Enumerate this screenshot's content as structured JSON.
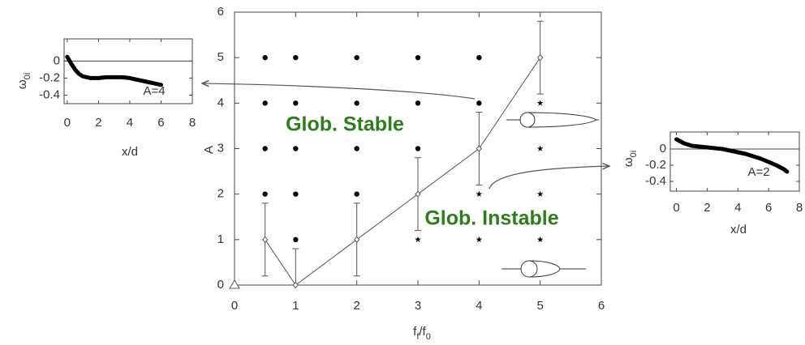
{
  "chart_data": [
    {
      "type": "scatter",
      "xlim": [
        0,
        6
      ],
      "ylim": [
        0,
        6
      ],
      "xticks": [
        0,
        1,
        2,
        3,
        4,
        5,
        6
      ],
      "yticks": [
        0,
        1,
        2,
        3,
        4,
        5,
        6
      ],
      "xlabel_parts": [
        {
          "text": "f"
        },
        {
          "text": "f",
          "sub": true
        },
        {
          "text": "/f"
        },
        {
          "text": "0",
          "sub": true
        }
      ],
      "ylabel": "A",
      "annotations": [
        "Glob. Stable",
        "Glob. Instable"
      ],
      "series": [
        {
          "marker": "dot",
          "color": "#000000",
          "x": [
            0.5,
            1,
            2,
            3,
            4,
            0.5,
            1,
            2,
            3,
            4,
            0.5,
            1,
            2,
            3,
            0.5,
            1,
            2,
            1
          ],
          "values": [
            5,
            5,
            5,
            5,
            5,
            4,
            4,
            4,
            4,
            4,
            3,
            3,
            3,
            3,
            2,
            2,
            2,
            1
          ]
        },
        {
          "marker": "star",
          "color": "#000000",
          "x": [
            5,
            5,
            4,
            5,
            3,
            4,
            5
          ],
          "values": [
            4,
            3,
            2,
            2,
            1,
            1,
            1
          ]
        },
        {
          "marker": "diamond",
          "line": true,
          "color": "#555555",
          "x": [
            0.5,
            1,
            2,
            3,
            4,
            5
          ],
          "values": [
            1,
            0,
            1,
            2,
            3,
            5
          ],
          "errors": [
            0.8,
            0.8,
            0.8,
            0.8,
            0.8,
            0.8
          ]
        },
        {
          "marker": "triangle",
          "color": "#555555",
          "x": [
            0
          ],
          "values": [
            0
          ]
        }
      ]
    },
    {
      "type": "line",
      "xlim": [
        -0.2,
        8
      ],
      "ylim": [
        -0.5,
        0.26
      ],
      "xticks": [
        0,
        2,
        4,
        6,
        8
      ],
      "yticks": [
        0,
        -0.2,
        -0.4
      ],
      "xlabel": "x/d",
      "ylabel_parts": [
        {
          "text": "ω"
        },
        {
          "text": "0i",
          "sub": true
        }
      ],
      "annotation": "A=4",
      "hline": 0,
      "color": "#000000",
      "x": [
        0,
        0.25,
        0.5,
        0.75,
        1,
        1.5,
        2,
        2.5,
        3,
        3.5,
        4,
        4.5,
        5,
        5.5,
        6
      ],
      "values": [
        0.05,
        -0.03,
        -0.1,
        -0.15,
        -0.18,
        -0.2,
        -0.2,
        -0.19,
        -0.19,
        -0.19,
        -0.2,
        -0.22,
        -0.24,
        -0.26,
        -0.28
      ]
    },
    {
      "type": "line",
      "xlim": [
        -0.4,
        8
      ],
      "ylim": [
        -0.52,
        0.21
      ],
      "xticks": [
        0,
        2,
        4,
        6,
        8
      ],
      "yticks": [
        0,
        -0.2,
        -0.4
      ],
      "xlabel": "x/d",
      "ylabel_parts": [
        {
          "text": "ω"
        },
        {
          "text": "0i",
          "sub": true
        }
      ],
      "annotation": "A=2",
      "hline": 0,
      "color": "#000000",
      "x": [
        0,
        0.5,
        1,
        1.5,
        2,
        2.5,
        3,
        3.5,
        4,
        4.5,
        5,
        5.5,
        6,
        6.5,
        7,
        7.2
      ],
      "values": [
        0.12,
        0.07,
        0.04,
        0.03,
        0.02,
        0.01,
        0,
        -0.02,
        -0.04,
        -0.06,
        -0.09,
        -0.12,
        -0.16,
        -0.2,
        -0.25,
        -0.28
      ]
    }
  ]
}
